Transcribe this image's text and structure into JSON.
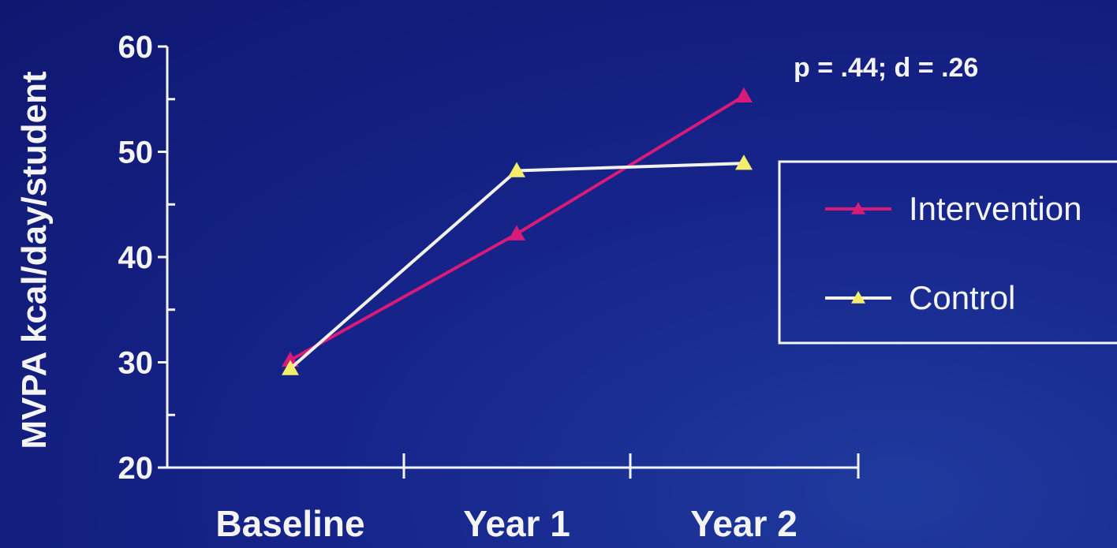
{
  "chart_data": {
    "type": "line",
    "title": "",
    "xlabel": "",
    "ylabel": "MVPA kcal/day/student",
    "categories": [
      "Baseline",
      "Year 1",
      "Year 2"
    ],
    "ylim": [
      20,
      60
    ],
    "yticks": [
      20,
      30,
      40,
      50,
      60
    ],
    "y_minor_step": 5,
    "grid": false,
    "legend_position": "right",
    "annotation": "p = .44; d = .26",
    "series": [
      {
        "name": "Intervention",
        "values": [
          30.2,
          42.2,
          55.3
        ],
        "color": "#d81b78",
        "marker": "triangle"
      },
      {
        "name": "Control",
        "values": [
          29.4,
          48.2,
          48.9
        ],
        "color": "#f2f2e8",
        "marker_color": "#f3ee6a",
        "marker": "triangle"
      }
    ]
  }
}
